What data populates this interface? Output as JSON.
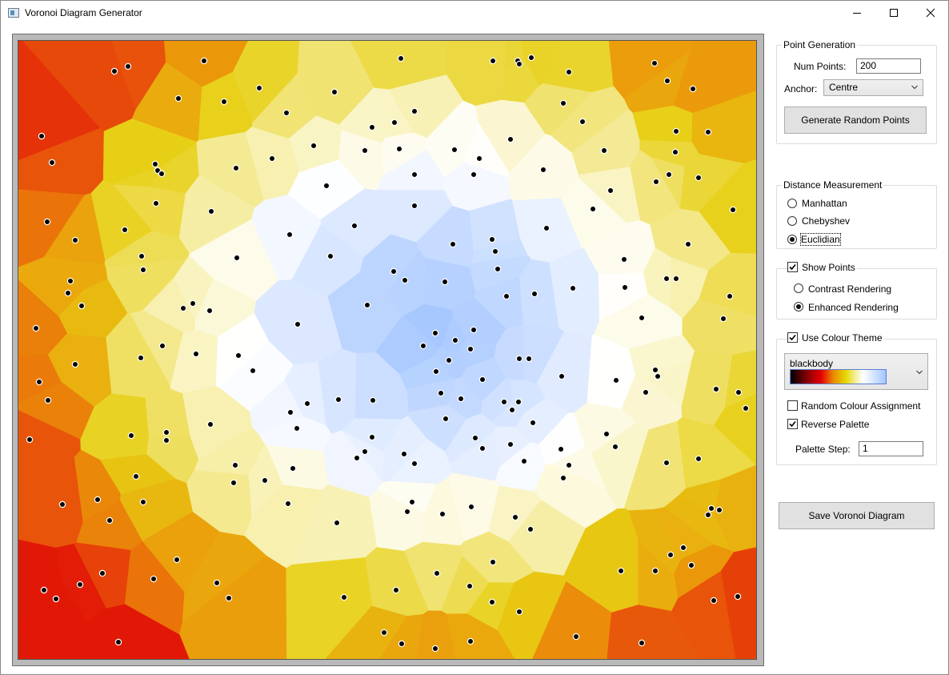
{
  "window": {
    "title": "Voronoi Diagram Generator"
  },
  "point_generation": {
    "group_label": "Point Generation",
    "num_points_label": "Num Points:",
    "num_points_value": "200",
    "anchor_label": "Anchor:",
    "anchor_value": "Centre",
    "generate_button": "Generate Random Points"
  },
  "distance": {
    "group_label": "Distance Measurement",
    "options": [
      "Manhattan",
      "Chebyshev",
      "Euclidian"
    ],
    "selected": "Euclidian"
  },
  "show_points": {
    "label": "Show Points",
    "checked": true,
    "options": [
      "Contrast Rendering",
      "Enhanced Rendering"
    ],
    "selected": "Enhanced Rendering"
  },
  "colour_theme": {
    "label": "Use Colour Theme",
    "checked": true,
    "palette_name": "blackbody",
    "random_label": "Random Colour Assignment",
    "random_checked": false,
    "reverse_label": "Reverse Palette",
    "reverse_checked": true,
    "step_label": "Palette Step:",
    "step_value": "1"
  },
  "save_button": "Save Voronoi Diagram",
  "icons": {
    "app": "app-icon",
    "minimize": "minimize-icon",
    "maximize": "maximize-icon",
    "close": "close-icon",
    "dropdown": "chevron-down-icon"
  },
  "colors": {
    "palette_stops": [
      "#000000",
      "#e50000",
      "#e6d700",
      "#ffffff",
      "#a3c6ff"
    ]
  }
}
